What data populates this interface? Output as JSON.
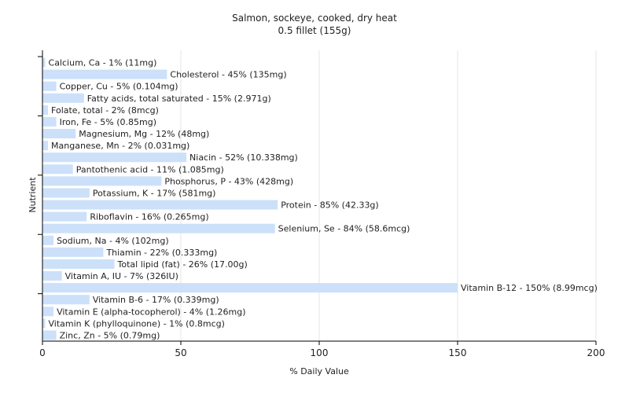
{
  "chart_data": {
    "type": "bar",
    "orientation": "horizontal",
    "title": "Salmon, sockeye, cooked, dry heat",
    "subtitle": "0.5 fillet (155g)",
    "xlabel": "% Daily Value",
    "ylabel": "Nutrient",
    "xlim": [
      0,
      200
    ],
    "xticks": [
      "0",
      "50",
      "100",
      "150",
      "200"
    ],
    "grid": true,
    "legend": "none",
    "bar_color": "#cce0fa",
    "categories": [
      "Calcium, Ca",
      "Cholesterol",
      "Copper, Cu",
      "Fatty acids, total saturated",
      "Folate, total",
      "Iron, Fe",
      "Magnesium, Mg",
      "Manganese, Mn",
      "Niacin",
      "Pantothenic acid",
      "Phosphorus, P",
      "Potassium, K",
      "Protein",
      "Riboflavin",
      "Selenium, Se",
      "Sodium, Na",
      "Thiamin",
      "Total lipid (fat)",
      "Vitamin A, IU",
      "Vitamin B-12",
      "Vitamin B-6",
      "Vitamin E (alpha-tocopherol)",
      "Vitamin K (phylloquinone)",
      "Zinc, Zn"
    ],
    "values": [
      1,
      45,
      5,
      15,
      2,
      5,
      12,
      2,
      52,
      11,
      43,
      17,
      85,
      16,
      84,
      4,
      22,
      26,
      7,
      150,
      17,
      4,
      1,
      5
    ],
    "labels": [
      "Calcium, Ca - 1% (11mg)",
      "Cholesterol - 45% (135mg)",
      "Copper, Cu - 5% (0.104mg)",
      "Fatty acids, total saturated - 15% (2.971g)",
      "Folate, total - 2% (8mcg)",
      "Iron, Fe - 5% (0.85mg)",
      "Magnesium, Mg - 12% (48mg)",
      "Manganese, Mn - 2% (0.031mg)",
      "Niacin - 52% (10.338mg)",
      "Pantothenic acid - 11% (1.085mg)",
      "Phosphorus, P - 43% (428mg)",
      "Potassium, K - 17% (581mg)",
      "Protein - 85% (42.33g)",
      "Riboflavin - 16% (0.265mg)",
      "Selenium, Se - 84% (58.6mcg)",
      "Sodium, Na - 4% (102mg)",
      "Thiamin - 22% (0.333mg)",
      "Total lipid (fat) - 26% (17.00g)",
      "Vitamin A, IU - 7% (326IU)",
      "Vitamin B-12 - 150% (8.99mcg)",
      "Vitamin B-6 - 17% (0.339mg)",
      "Vitamin E (alpha-tocopherol) - 4% (1.26mg)",
      "Vitamin K (phylloquinone) - 1% (0.8mcg)",
      "Zinc, Zn - 5% (0.79mg)"
    ]
  }
}
